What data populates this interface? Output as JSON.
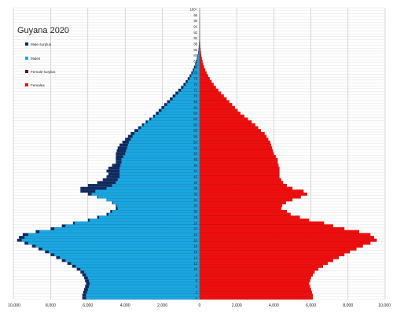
{
  "chart_data": {
    "type": "bar",
    "orientation": "horizontal",
    "title": "Guyana 2020",
    "xlim": [
      -10000,
      10000
    ],
    "x_ticks": [
      -10000,
      -8000,
      -6000,
      -4000,
      -2000,
      0,
      2000,
      4000,
      6000,
      8000,
      10000
    ],
    "x_tick_labels": [
      "10,000",
      "8,000",
      "6,000",
      "4,000",
      "2,000",
      "0",
      "2,000",
      "4,000",
      "6,000",
      "8,000",
      "10,000"
    ],
    "grid": true,
    "legend_position": "top-left",
    "legend": [
      {
        "label": "Male surplus",
        "color": "#102a5e"
      },
      {
        "label": "Males",
        "color": "#1aa7e2"
      },
      {
        "label": "Female surplus",
        "color": "#6b0f0f"
      },
      {
        "label": "Females",
        "color": "#ef0e0e"
      }
    ],
    "age_tick_labels": [
      "0",
      "2",
      "4",
      "6",
      "8",
      "10",
      "12",
      "14",
      "16",
      "18",
      "20",
      "22",
      "24",
      "26",
      "28",
      "30",
      "32",
      "34",
      "36",
      "38",
      "40",
      "42",
      "44",
      "46",
      "48",
      "50",
      "52",
      "54",
      "56",
      "58",
      "60",
      "62",
      "64",
      "66",
      "68",
      "70",
      "72",
      "74",
      "76",
      "78",
      "80",
      "82",
      "84",
      "86",
      "88",
      "90",
      "92",
      "94",
      "96",
      "98",
      "100+"
    ],
    "ages": [
      0,
      1,
      2,
      3,
      4,
      5,
      6,
      7,
      8,
      9,
      10,
      11,
      12,
      13,
      14,
      15,
      16,
      17,
      18,
      19,
      20,
      21,
      22,
      23,
      24,
      25,
      26,
      27,
      28,
      29,
      30,
      31,
      32,
      33,
      34,
      35,
      36,
      37,
      38,
      39,
      40,
      41,
      42,
      43,
      44,
      45,
      46,
      47,
      48,
      49,
      50,
      51,
      52,
      53,
      54,
      55,
      56,
      57,
      58,
      59,
      60,
      61,
      62,
      63,
      64,
      65,
      66,
      67,
      68,
      69,
      70,
      71,
      72,
      73,
      74,
      75,
      76,
      77,
      78,
      79,
      80,
      81,
      82,
      83,
      84,
      85,
      86,
      87,
      88,
      89,
      90,
      91,
      92,
      93,
      94,
      95,
      96,
      97,
      98,
      99,
      100
    ],
    "series": [
      {
        "name": "Males",
        "values": [
          6300,
          6300,
          6250,
          6200,
          6150,
          6100,
          6150,
          6200,
          6300,
          6400,
          6600,
          6850,
          7100,
          7400,
          7700,
          8000,
          8300,
          8650,
          9000,
          9400,
          9800,
          9700,
          9500,
          8800,
          8000,
          7400,
          6800,
          6000,
          5500,
          5000,
          4800,
          4500,
          4500,
          4700,
          5000,
          5500,
          6000,
          6400,
          6400,
          6000,
          5500,
          5200,
          5000,
          4900,
          5000,
          4900,
          4700,
          4500,
          4500,
          4500,
          4500,
          4450,
          4400,
          4300,
          4150,
          4000,
          3850,
          3700,
          3500,
          3300,
          3100,
          2900,
          2700,
          2500,
          2350,
          2200,
          2050,
          1900,
          1750,
          1600,
          1450,
          1300,
          1150,
          1000,
          870,
          750,
          640,
          540,
          450,
          370,
          300,
          240,
          190,
          150,
          115,
          85,
          65,
          48,
          35,
          25,
          18,
          13,
          9,
          6,
          4,
          3,
          2,
          1,
          1,
          0,
          0
        ]
      },
      {
        "name": "Females",
        "values": [
          6100,
          6100,
          6050,
          6000,
          5950,
          5900,
          5950,
          6000,
          6100,
          6200,
          6400,
          6650,
          6900,
          7200,
          7500,
          7800,
          8100,
          8450,
          8800,
          9200,
          9550,
          9400,
          9200,
          8600,
          7800,
          7200,
          6700,
          5900,
          5400,
          4900,
          4700,
          4400,
          4450,
          4650,
          5000,
          5450,
          5800,
          5600,
          5000,
          4700,
          4500,
          4400,
          4300,
          4300,
          4300,
          4300,
          4250,
          4200,
          4200,
          4100,
          4000,
          3950,
          3900,
          3850,
          3800,
          3700,
          3600,
          3500,
          3300,
          3150,
          3000,
          2800,
          2600,
          2400,
          2200,
          2050,
          1900,
          1750,
          1600,
          1450,
          1300,
          1150,
          1000,
          870,
          750,
          640,
          540,
          450,
          370,
          300,
          240,
          190,
          150,
          115,
          85,
          65,
          48,
          35,
          25,
          18,
          13,
          9,
          6,
          4,
          3,
          2,
          1,
          1,
          0,
          0,
          0
        ]
      }
    ]
  }
}
